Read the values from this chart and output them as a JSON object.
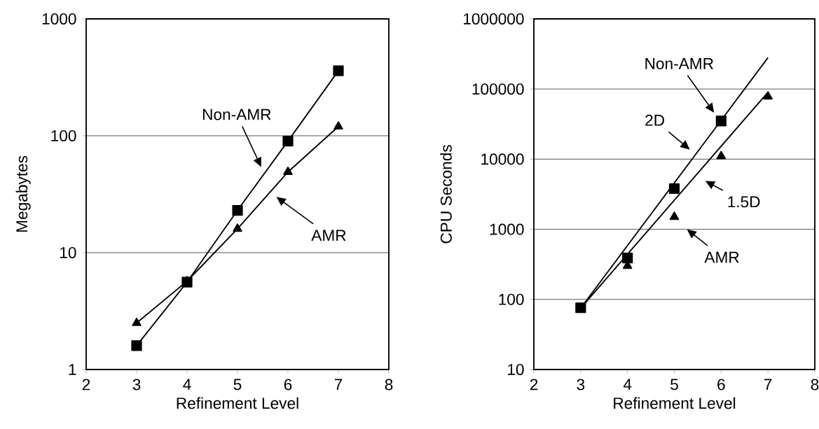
{
  "chart_data": [
    {
      "type": "line",
      "xlabel": "Refinement Level",
      "ylabel": "Megabytes",
      "log": "y",
      "grid": "y",
      "xlim": [
        2,
        8
      ],
      "xticks": [
        2,
        3,
        4,
        5,
        6,
        7,
        8
      ],
      "ylim": [
        1,
        1000
      ],
      "yticks": [
        1,
        10,
        100,
        1000
      ],
      "x": [
        3,
        4,
        5,
        6,
        7
      ],
      "series": [
        {
          "color": "#000000",
          "marker": "square",
          "values": [
            1.6,
            5.6,
            23,
            90,
            360
          ]
        },
        {
          "color": "#000000",
          "marker": "triangle",
          "values": [
            2.5,
            5.7,
            16,
            49,
            120
          ]
        }
      ],
      "annotations": [
        "Non-AMR",
        "AMR"
      ]
    },
    {
      "type": "scatter",
      "xlabel": "Refinement Level",
      "ylabel": "CPU Seconds",
      "log": "y",
      "grid": "y",
      "xlim": [
        2,
        8
      ],
      "xticks": [
        2,
        3,
        4,
        5,
        6,
        7,
        8
      ],
      "ylim": [
        10,
        1000000
      ],
      "yticks": [
        10,
        100,
        1000,
        10000,
        100000,
        1000000
      ],
      "series": [
        {
          "color": "#000000",
          "marker": "square",
          "x": [
            3,
            4,
            5,
            6
          ],
          "values": [
            76,
            390,
            3800,
            35000
          ]
        },
        {
          "color": "#000000",
          "marker": "triangle",
          "x": [
            4,
            5,
            6,
            7
          ],
          "values": [
            300,
            1500,
            11000,
            78000
          ]
        },
        {
          "type": "line",
          "color": "#000000",
          "marker": "none",
          "x": [
            3,
            7
          ],
          "values": [
            75,
            280000
          ]
        },
        {
          "type": "line",
          "color": "#000000",
          "marker": "none",
          "x": [
            3,
            7
          ],
          "values": [
            75,
            90000
          ]
        }
      ],
      "annotations": [
        "Non-AMR",
        "2D",
        "1.5D",
        "AMR"
      ]
    }
  ]
}
